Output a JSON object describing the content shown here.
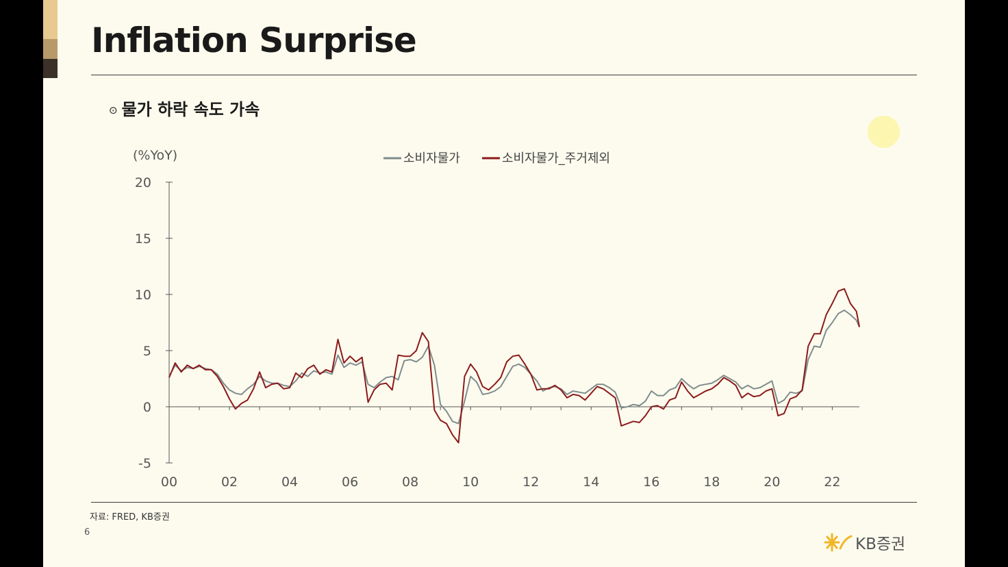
{
  "slide": {
    "title": "Inflation Surprise",
    "subtitle_bullet": "⊙",
    "subtitle": "물가 하락 속도 가속",
    "source": "자료: FRED, KB증권",
    "page_number": "6",
    "logo_text": "KB증권"
  },
  "colors": {
    "background": "#fdfbee",
    "accent_top": "#e8c98f",
    "accent_mid": "#b89a6a",
    "accent_bottom": "#3b3128",
    "series_cpi": "#7f8c8d",
    "series_ex_shelter": "#8b1a1a"
  },
  "chart_data": {
    "type": "line",
    "unit_label": "(%YoY)",
    "ylim": [
      -5,
      20
    ],
    "yticks": [
      -5,
      0,
      5,
      10,
      15,
      20
    ],
    "ytick_labels": [
      "-5",
      "0",
      "5",
      "10",
      "15",
      "20"
    ],
    "xlim": [
      2000,
      2022.9
    ],
    "xticks": [
      2000,
      2002,
      2004,
      2006,
      2008,
      2010,
      2012,
      2014,
      2016,
      2018,
      2020,
      2022
    ],
    "xtick_labels": [
      "00",
      "02",
      "04",
      "06",
      "08",
      "10",
      "12",
      "14",
      "16",
      "18",
      "20",
      "22"
    ],
    "legend_position": "top-center",
    "series": [
      {
        "name": "소비자물가",
        "color": "#7f8c8d",
        "x": [
          2000.0,
          2000.2,
          2000.4,
          2000.6,
          2000.8,
          2001.0,
          2001.2,
          2001.4,
          2001.6,
          2001.8,
          2002.0,
          2002.2,
          2002.4,
          2002.6,
          2002.8,
          2003.0,
          2003.2,
          2003.4,
          2003.6,
          2003.8,
          2004.0,
          2004.2,
          2004.4,
          2004.6,
          2004.8,
          2005.0,
          2005.2,
          2005.4,
          2005.6,
          2005.8,
          2006.0,
          2006.2,
          2006.4,
          2006.6,
          2006.8,
          2007.0,
          2007.2,
          2007.4,
          2007.6,
          2007.8,
          2008.0,
          2008.2,
          2008.4,
          2008.6,
          2008.8,
          2009.0,
          2009.2,
          2009.4,
          2009.6,
          2009.8,
          2010.0,
          2010.2,
          2010.4,
          2010.6,
          2010.8,
          2011.0,
          2011.2,
          2011.4,
          2011.6,
          2011.8,
          2012.0,
          2012.2,
          2012.4,
          2012.6,
          2012.8,
          2013.0,
          2013.2,
          2013.4,
          2013.6,
          2013.8,
          2014.0,
          2014.2,
          2014.4,
          2014.6,
          2014.8,
          2015.0,
          2015.2,
          2015.4,
          2015.6,
          2015.8,
          2016.0,
          2016.2,
          2016.4,
          2016.6,
          2016.8,
          2017.0,
          2017.2,
          2017.4,
          2017.6,
          2017.8,
          2018.0,
          2018.2,
          2018.4,
          2018.6,
          2018.8,
          2019.0,
          2019.2,
          2019.4,
          2019.6,
          2019.8,
          2020.0,
          2020.2,
          2020.4,
          2020.6,
          2020.8,
          2021.0,
          2021.2,
          2021.4,
          2021.6,
          2021.8,
          2022.0,
          2022.2,
          2022.4,
          2022.6,
          2022.8,
          2022.9
        ],
        "y": [
          2.7,
          3.7,
          3.2,
          3.5,
          3.4,
          3.6,
          3.4,
          3.3,
          2.9,
          2.1,
          1.5,
          1.2,
          1.1,
          1.6,
          2.0,
          2.7,
          2.3,
          2.1,
          2.1,
          1.9,
          1.8,
          2.3,
          3.0,
          2.7,
          3.2,
          3.0,
          3.1,
          2.9,
          4.6,
          3.5,
          3.9,
          3.7,
          4.0,
          2.0,
          1.7,
          2.2,
          2.6,
          2.7,
          2.4,
          4.1,
          4.2,
          4.0,
          4.4,
          5.4,
          3.7,
          0.2,
          -0.4,
          -1.3,
          -1.5,
          0.5,
          2.7,
          2.2,
          1.1,
          1.2,
          1.4,
          1.8,
          2.7,
          3.6,
          3.8,
          3.5,
          2.9,
          2.3,
          1.4,
          1.7,
          1.8,
          1.6,
          1.1,
          1.4,
          1.3,
          1.2,
          1.6,
          2.0,
          2.0,
          1.7,
          1.3,
          -0.1,
          0.0,
          0.2,
          0.1,
          0.5,
          1.4,
          1.0,
          1.0,
          1.5,
          1.7,
          2.5,
          2.0,
          1.6,
          1.9,
          2.0,
          2.1,
          2.4,
          2.8,
          2.5,
          2.2,
          1.6,
          1.9,
          1.6,
          1.7,
          2.0,
          2.3,
          0.3,
          0.6,
          1.3,
          1.2,
          1.4,
          4.2,
          5.4,
          5.3,
          6.8,
          7.5,
          8.3,
          8.6,
          8.2,
          7.7,
          7.1
        ]
      },
      {
        "name": "소비자물가_주거제외",
        "color": "#8b1a1a",
        "x": [
          2000.0,
          2000.2,
          2000.4,
          2000.6,
          2000.8,
          2001.0,
          2001.2,
          2001.4,
          2001.6,
          2001.8,
          2002.0,
          2002.2,
          2002.4,
          2002.6,
          2002.8,
          2003.0,
          2003.2,
          2003.4,
          2003.6,
          2003.8,
          2004.0,
          2004.2,
          2004.4,
          2004.6,
          2004.8,
          2005.0,
          2005.2,
          2005.4,
          2005.6,
          2005.8,
          2006.0,
          2006.2,
          2006.4,
          2006.6,
          2006.8,
          2007.0,
          2007.2,
          2007.4,
          2007.6,
          2007.8,
          2008.0,
          2008.2,
          2008.4,
          2008.6,
          2008.8,
          2009.0,
          2009.2,
          2009.4,
          2009.6,
          2009.8,
          2010.0,
          2010.2,
          2010.4,
          2010.6,
          2010.8,
          2011.0,
          2011.2,
          2011.4,
          2011.6,
          2011.8,
          2012.0,
          2012.2,
          2012.4,
          2012.6,
          2012.8,
          2013.0,
          2013.2,
          2013.4,
          2013.6,
          2013.8,
          2014.0,
          2014.2,
          2014.4,
          2014.6,
          2014.8,
          2015.0,
          2015.2,
          2015.4,
          2015.6,
          2015.8,
          2016.0,
          2016.2,
          2016.4,
          2016.6,
          2016.8,
          2017.0,
          2017.2,
          2017.4,
          2017.6,
          2017.8,
          2018.0,
          2018.2,
          2018.4,
          2018.6,
          2018.8,
          2019.0,
          2019.2,
          2019.4,
          2019.6,
          2019.8,
          2020.0,
          2020.2,
          2020.4,
          2020.6,
          2020.8,
          2021.0,
          2021.2,
          2021.4,
          2021.6,
          2021.8,
          2022.0,
          2022.2,
          2022.4,
          2022.6,
          2022.8,
          2022.9
        ],
        "y": [
          2.6,
          3.9,
          3.1,
          3.7,
          3.4,
          3.7,
          3.3,
          3.3,
          2.7,
          1.8,
          0.7,
          -0.2,
          0.3,
          0.6,
          1.6,
          3.1,
          1.7,
          2.0,
          2.1,
          1.6,
          1.7,
          3.0,
          2.6,
          3.4,
          3.7,
          2.9,
          3.3,
          3.1,
          6.0,
          3.9,
          4.5,
          4.0,
          4.4,
          0.4,
          1.5,
          2.0,
          2.1,
          1.5,
          4.6,
          4.5,
          4.5,
          5.0,
          6.6,
          5.8,
          -0.3,
          -1.2,
          -1.5,
          -2.5,
          -3.2,
          2.7,
          3.8,
          3.1,
          1.8,
          1.5,
          2.0,
          2.6,
          4.0,
          4.5,
          4.6,
          3.8,
          2.9,
          1.5,
          1.6,
          1.6,
          1.9,
          1.5,
          0.8,
          1.1,
          1.0,
          0.6,
          1.2,
          1.8,
          1.6,
          1.2,
          0.8,
          -1.7,
          -1.5,
          -1.3,
          -1.4,
          -0.8,
          0.0,
          0.1,
          -0.2,
          0.6,
          0.8,
          2.2,
          1.4,
          0.8,
          1.1,
          1.4,
          1.6,
          2.0,
          2.6,
          2.3,
          1.9,
          0.8,
          1.2,
          0.9,
          1.0,
          1.4,
          1.6,
          -0.8,
          -0.6,
          0.7,
          0.9,
          1.5,
          5.4,
          6.5,
          6.5,
          8.2,
          9.2,
          10.3,
          10.5,
          9.2,
          8.5,
          7.1
        ]
      }
    ]
  }
}
